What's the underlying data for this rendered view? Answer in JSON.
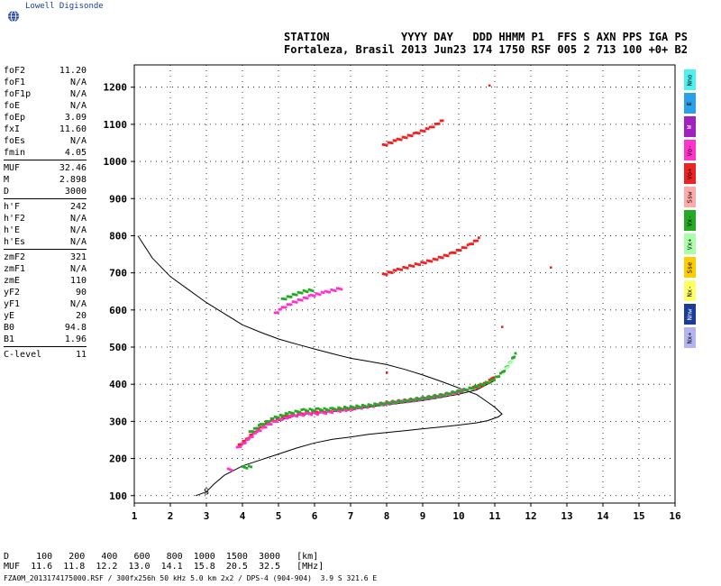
{
  "app": {
    "brand": "Lowell Digisonde",
    "brand_icon": "globe-icon"
  },
  "header": {
    "line1": "STATION           YYYY DAY   DDD HHMM P1  FFS S AXN PPS IGA PS",
    "line2": "Fortaleza, Brasil 2013 Jun23 174 1750 RSF 005 2 713 100 +0+ B2"
  },
  "params": [
    {
      "group": [
        {
          "name": "foF2",
          "value": "11.20"
        },
        {
          "name": "foF1",
          "value": "N/A"
        },
        {
          "name": "foF1p",
          "value": "N/A"
        },
        {
          "name": "foE",
          "value": "N/A"
        },
        {
          "name": "foEp",
          "value": "3.09"
        },
        {
          "name": "fxI",
          "value": "11.60"
        },
        {
          "name": "foEs",
          "value": "N/A"
        },
        {
          "name": "fmin",
          "value": "4.05"
        }
      ]
    },
    {
      "group": [
        {
          "name": "MUF",
          "value": "32.46"
        },
        {
          "name": "M",
          "value": "2.898"
        },
        {
          "name": "D",
          "value": "3000"
        }
      ]
    },
    {
      "group": [
        {
          "name": "h'F",
          "value": "242"
        },
        {
          "name": "h'F2",
          "value": "N/A"
        },
        {
          "name": "h'E",
          "value": "N/A"
        },
        {
          "name": "h'Es",
          "value": "N/A"
        }
      ]
    },
    {
      "group": [
        {
          "name": "zmF2",
          "value": "321"
        },
        {
          "name": "zmF1",
          "value": "N/A"
        },
        {
          "name": "zmE",
          "value": "110"
        },
        {
          "name": "yF2",
          "value": "90"
        },
        {
          "name": "yF1",
          "value": "N/A"
        },
        {
          "name": "yE",
          "value": "20"
        },
        {
          "name": "B0",
          "value": "94.8"
        },
        {
          "name": "B1",
          "value": "1.96"
        }
      ]
    },
    {
      "group": [
        {
          "name": "C-level",
          "value": "11"
        }
      ]
    }
  ],
  "legend": [
    {
      "label": "Nno",
      "color": "#4ef0f0"
    },
    {
      "label": "E",
      "color": "#2aa0e8"
    },
    {
      "label": "W",
      "color": "#a020c0"
    },
    {
      "label": "Vo-",
      "color": "#ff33cc"
    },
    {
      "label": "Vo+",
      "color": "#ee2222"
    },
    {
      "label": "Ssw",
      "color": "#ffaaaa"
    },
    {
      "label": "Vx-",
      "color": "#22aa22"
    },
    {
      "label": "Vx+",
      "color": "#aaffaa"
    },
    {
      "label": "Sse",
      "color": "#ffcc00"
    },
    {
      "label": "Nx-",
      "color": "#ffff66"
    },
    {
      "label": "Nnw",
      "color": "#1a3c9c"
    },
    {
      "label": "Nx+",
      "color": "#b4b4f0"
    }
  ],
  "muf_table": {
    "line1": "D     100   200   400   600   800  1000  1500  3000   [km]",
    "line2": "MUF  11.6  11.8  12.2  13.0  14.1  15.8  20.5  32.5   [MHz]"
  },
  "footer": "FZA0M_2013174175000.RSF / 300fx256h 50 kHz 5.0 km 2x2 / DPS-4 (904-904)  3.9 S 321.6 E",
  "chart_data": {
    "type": "scatter",
    "xlim": [
      1,
      16
    ],
    "ylim": [
      80,
      1260
    ],
    "x_ticks": [
      1,
      2,
      3,
      4,
      5,
      6,
      7,
      8,
      9,
      10,
      11,
      12,
      13,
      14,
      15,
      16
    ],
    "y_ticks": [
      100,
      200,
      300,
      400,
      500,
      600,
      700,
      800,
      900,
      1000,
      1100,
      1200
    ],
    "grid": "dotted",
    "series": [
      {
        "name": "Vo+",
        "color": "#ee2222",
        "kind": "trace",
        "points": [
          [
            3.9,
            235
          ],
          [
            4.1,
            250
          ],
          [
            4.3,
            268
          ],
          [
            4.5,
            282
          ],
          [
            4.8,
            300
          ],
          [
            5.2,
            312
          ],
          [
            5.6,
            320
          ],
          [
            6.0,
            325
          ],
          [
            6.5,
            330
          ],
          [
            7.0,
            335
          ],
          [
            7.5,
            342
          ],
          [
            8.0,
            350
          ],
          [
            8.5,
            356
          ],
          [
            9.0,
            362
          ],
          [
            9.5,
            370
          ],
          [
            10.0,
            380
          ],
          [
            10.4,
            390
          ],
          [
            10.7,
            400
          ],
          [
            10.9,
            412
          ],
          [
            11.0,
            425
          ]
        ]
      },
      {
        "name": "Vo-",
        "color": "#ff33cc",
        "kind": "trace",
        "points": [
          [
            3.85,
            228
          ],
          [
            4.0,
            238
          ],
          [
            4.2,
            255
          ],
          [
            4.4,
            272
          ],
          [
            4.7,
            290
          ],
          [
            5.0,
            305
          ],
          [
            5.4,
            315
          ],
          [
            5.8,
            320
          ],
          [
            6.2,
            322
          ],
          [
            6.6,
            328
          ],
          [
            7.2,
            336
          ],
          [
            7.8,
            345
          ],
          [
            8.3,
            352
          ],
          [
            8.8,
            358
          ],
          [
            9.3,
            366
          ],
          [
            9.8,
            375
          ],
          [
            10.2,
            385
          ]
        ]
      },
      {
        "name": "Vx-",
        "color": "#22aa22",
        "kind": "trace",
        "points": [
          [
            4.2,
            270
          ],
          [
            4.5,
            290
          ],
          [
            4.9,
            310
          ],
          [
            5.3,
            322
          ],
          [
            5.7,
            330
          ],
          [
            6.1,
            332
          ],
          [
            6.5,
            333
          ],
          [
            7.5,
            343
          ],
          [
            8.5,
            355
          ],
          [
            9.5,
            370
          ],
          [
            10.3,
            388
          ],
          [
            10.9,
            408
          ],
          [
            11.2,
            430
          ],
          [
            11.4,
            455
          ],
          [
            11.6,
            485
          ]
        ]
      },
      {
        "name": "Vx+",
        "color": "#aaffaa",
        "kind": "trace",
        "points": [
          [
            11.3,
            440
          ],
          [
            11.5,
            468
          ]
        ]
      },
      {
        "name": "Vo+ multi-hop 700",
        "color": "#ee2222",
        "kind": "trace",
        "points": [
          [
            7.9,
            695
          ],
          [
            8.3,
            708
          ],
          [
            8.8,
            722
          ],
          [
            9.3,
            735
          ],
          [
            9.8,
            752
          ],
          [
            10.3,
            775
          ],
          [
            10.6,
            795
          ]
        ]
      },
      {
        "name": "Vo+ multi-hop 1050",
        "color": "#ee2222",
        "kind": "trace",
        "points": [
          [
            7.9,
            1043
          ],
          [
            8.3,
            1058
          ],
          [
            8.8,
            1075
          ],
          [
            9.2,
            1090
          ],
          [
            9.6,
            1113
          ]
        ]
      },
      {
        "name": "Vx- patch 650",
        "color": "#22aa22",
        "kind": "trace",
        "points": [
          [
            5.1,
            628
          ],
          [
            5.4,
            640
          ],
          [
            5.7,
            650
          ],
          [
            6.0,
            655
          ]
        ]
      },
      {
        "name": "Vo- patch 620",
        "color": "#ff33cc",
        "kind": "trace",
        "points": [
          [
            4.9,
            590
          ],
          [
            5.1,
            605
          ],
          [
            5.4,
            620
          ],
          [
            5.9,
            638
          ],
          [
            6.3,
            648
          ],
          [
            6.8,
            660
          ]
        ]
      },
      {
        "name": "Vo- patch 170",
        "color": "#ff33cc",
        "kind": "trace",
        "points": [
          [
            3.6,
            170
          ],
          [
            3.75,
            172
          ]
        ]
      },
      {
        "name": "Vx- patch 175",
        "color": "#22aa22",
        "kind": "trace",
        "points": [
          [
            4.0,
            176
          ],
          [
            4.3,
            178
          ]
        ]
      },
      {
        "name": "scattered",
        "color": "#ee2222",
        "kind": "dots",
        "points": [
          [
            10.85,
            1205
          ],
          [
            11.2,
            555
          ],
          [
            12.55,
            715
          ],
          [
            8.0,
            432
          ]
        ]
      }
    ],
    "profile_curve": {
      "color": "#000000",
      "points": [
        [
          1.1,
          800
        ],
        [
          1.5,
          740
        ],
        [
          2.0,
          690
        ],
        [
          2.5,
          655
        ],
        [
          3.0,
          620
        ],
        [
          3.5,
          590
        ],
        [
          4.0,
          560
        ],
        [
          4.5,
          540
        ],
        [
          5.0,
          522
        ],
        [
          5.5,
          508
        ],
        [
          6.0,
          495
        ],
        [
          6.5,
          482
        ],
        [
          7.0,
          470
        ],
        [
          7.5,
          462
        ],
        [
          8.0,
          453
        ],
        [
          8.5,
          440
        ],
        [
          9.0,
          425
        ],
        [
          9.5,
          408
        ],
        [
          10.0,
          390
        ],
        [
          10.5,
          372
        ],
        [
          10.8,
          352
        ],
        [
          11.0,
          338
        ],
        [
          11.2,
          320
        ],
        [
          11.1,
          312
        ],
        [
          10.8,
          302
        ],
        [
          10.5,
          296
        ],
        [
          10.0,
          290
        ],
        [
          9.5,
          285
        ],
        [
          9.0,
          280
        ],
        [
          8.5,
          275
        ],
        [
          8.0,
          270
        ],
        [
          7.5,
          265
        ],
        [
          7.0,
          258
        ],
        [
          6.5,
          252
        ],
        [
          6.0,
          242
        ],
        [
          5.5,
          228
        ],
        [
          5.0,
          212
        ],
        [
          4.5,
          196
        ],
        [
          4.0,
          180
        ],
        [
          3.5,
          155
        ],
        [
          3.2,
          130
        ],
        [
          3.0,
          110
        ],
        [
          2.7,
          100
        ]
      ]
    },
    "model_trace": {
      "color": "#000000",
      "points": [
        [
          5.0,
          302
        ],
        [
          5.5,
          316
        ],
        [
          6.0,
          322
        ],
        [
          6.5,
          326
        ],
        [
          7.0,
          332
        ],
        [
          7.5,
          338
        ],
        [
          8.0,
          345
        ],
        [
          8.5,
          350
        ],
        [
          9.0,
          356
        ],
        [
          9.5,
          364
        ],
        [
          10.0,
          373
        ],
        [
          10.5,
          385
        ],
        [
          11.0,
          410
        ]
      ]
    },
    "annotation": {
      "text": "S",
      "x": 3.0,
      "y": 110
    }
  }
}
